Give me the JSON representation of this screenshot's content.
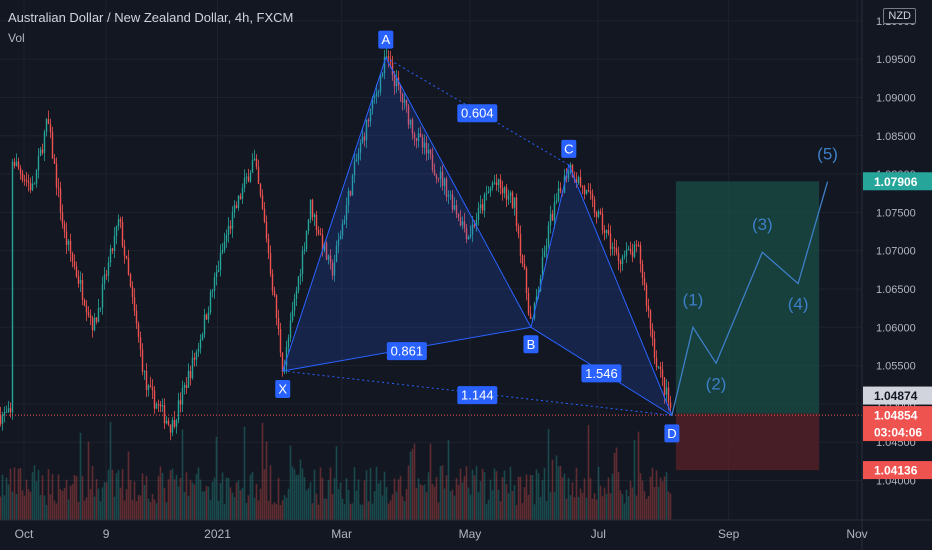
{
  "header": {
    "title": "Australian Dollar / New Zealand Dollar, 4h, FXCM",
    "volume_label": "Vol",
    "currency": "NZD"
  },
  "colors": {
    "background": "#131722",
    "grid": "#1e222d",
    "up": "#26a69a",
    "down": "#ef5350",
    "pattern": "#2962ff",
    "wave": "#3d7fc7",
    "target_zone": "#1a4d45",
    "stop_zone": "#5a2228"
  },
  "chart_data": {
    "type": "candlestick",
    "x_ticks": [
      "Oct",
      "9",
      "2021",
      "Mar",
      "May",
      "Jul",
      "Sep",
      "Nov"
    ],
    "y_ticks": [
      1.04,
      1.045,
      1.05,
      1.055,
      1.06,
      1.065,
      1.07,
      1.075,
      1.08,
      1.085,
      1.09,
      1.095,
      1.1
    ],
    "y_tick_labels": [
      "1.04000",
      "1.04500",
      "1.05000",
      "1.05500",
      "1.06000",
      "1.06500",
      "1.07000",
      "1.07500",
      "1.08000",
      "1.08500",
      "1.09000",
      "1.09500",
      "1.10000"
    ],
    "ylim": [
      1.0385,
      1.1005
    ],
    "pattern_points": [
      {
        "label": "X",
        "date": "2021-02-01",
        "price": 1.0543
      },
      {
        "label": "A",
        "date": "2021-03-22",
        "price": 1.0952
      },
      {
        "label": "B",
        "date": "2021-05-30",
        "price": 1.06
      },
      {
        "label": "C",
        "date": "2021-06-17",
        "price": 1.0812
      },
      {
        "label": "D",
        "date": "2021-08-05",
        "price": 1.0485
      }
    ],
    "ratios": [
      {
        "label": "0.604",
        "from": "A",
        "to": "C"
      },
      {
        "label": "0.861",
        "from": "X",
        "to": "B"
      },
      {
        "label": "1.546",
        "from": "B",
        "to": "D"
      },
      {
        "label": "1.144",
        "from": "X",
        "to": "D"
      }
    ],
    "waves": [
      {
        "label": "(1)",
        "date": "2021-08-15",
        "price": 1.06
      },
      {
        "label": "(2)",
        "date": "2021-08-26",
        "price": 1.0553
      },
      {
        "label": "(3)",
        "date": "2021-09-17",
        "price": 1.0698
      },
      {
        "label": "(4)",
        "date": "2021-10-04",
        "price": 1.0657
      },
      {
        "label": "(5)",
        "date": "2021-10-18",
        "price": 1.079
      }
    ],
    "position": {
      "entry": 1.04874,
      "target": 1.07906,
      "stop": 1.04136
    },
    "price_labels": [
      {
        "value": "1.07906",
        "color": "#26a69a"
      },
      {
        "value": "1.04874",
        "color": "#d1d4dc"
      },
      {
        "value": "1.04854",
        "color": "#ef5350"
      },
      {
        "value": "03:04:06",
        "color": "#ef5350"
      },
      {
        "value": "1.04136",
        "color": "#ef5350"
      }
    ],
    "last_price": 1.04854,
    "countdown": "03:04:06"
  }
}
